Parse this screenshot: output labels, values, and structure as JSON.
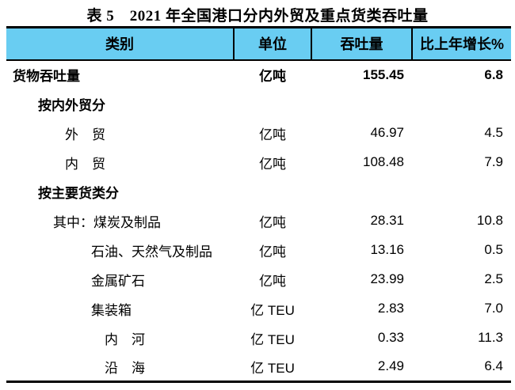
{
  "title": "表 5　2021 年全国港口分内外贸及重点货类吞吐量",
  "colors": {
    "header_bg": "#69CDF2",
    "border": "#000000",
    "text": "#000000"
  },
  "table": {
    "columns": [
      {
        "label": "类别"
      },
      {
        "label": "单位"
      },
      {
        "label": "吞吐量"
      },
      {
        "label": "比上年增长%"
      }
    ],
    "rows": [
      {
        "label": "货物吞吐量",
        "unit": "亿吨",
        "value": "155.45",
        "growth": "6.8",
        "bold": true,
        "indent": 0
      },
      {
        "label": "按内外贸分",
        "unit": "",
        "value": "",
        "growth": "",
        "bold": true,
        "indent": 1
      },
      {
        "label": "外　贸",
        "unit": "亿吨",
        "value": "46.97",
        "growth": "4.5",
        "bold": false,
        "indent": 2
      },
      {
        "label": "内　贸",
        "unit": "亿吨",
        "value": "108.48",
        "growth": "7.9",
        "bold": false,
        "indent": 2
      },
      {
        "label": "按主要货类分",
        "unit": "",
        "value": "",
        "growth": "",
        "bold": true,
        "indent": 1
      },
      {
        "label": "其中：煤炭及制品",
        "unit": "亿吨",
        "value": "28.31",
        "growth": "10.8",
        "bold": false,
        "indent": 3
      },
      {
        "label": "石油、天然气及制品",
        "unit": "亿吨",
        "value": "13.16",
        "growth": "0.5",
        "bold": false,
        "indent": 4
      },
      {
        "label": "金属矿石",
        "unit": "亿吨",
        "value": "23.99",
        "growth": "2.5",
        "bold": false,
        "indent": 4
      },
      {
        "label": "集装箱",
        "unit": "亿 TEU",
        "value": "2.83",
        "growth": "7.0",
        "bold": false,
        "indent": 4
      },
      {
        "label": "内　河",
        "unit": "亿 TEU",
        "value": "0.33",
        "growth": "11.3",
        "bold": false,
        "indent": 5
      },
      {
        "label": "沿　海",
        "unit": "亿 TEU",
        "value": "2.49",
        "growth": "6.4",
        "bold": false,
        "indent": 5
      }
    ]
  }
}
